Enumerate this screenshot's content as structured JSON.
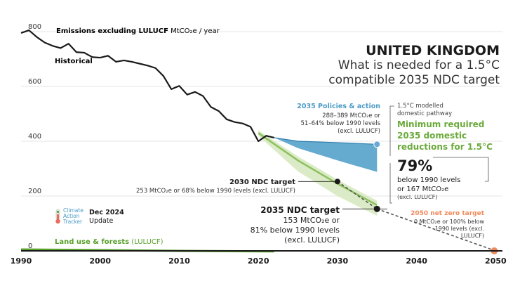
{
  "chart_data": {
    "type": "line",
    "title": "UNITED KINGDOM",
    "subtitle_line1": "What is needed for a 1.5°C",
    "subtitle_line2": "compatible 2035 NDC target",
    "ylabel_bold": "Emissions excluding LULUCF",
    "ylabel_unit": " MtCO₂e / year",
    "xlim": [
      1990,
      2051
    ],
    "ylim": [
      0,
      800
    ],
    "x_ticks": [
      1990,
      2000,
      2010,
      2020,
      2030,
      2040,
      2050
    ],
    "y_ticks": [
      0,
      200,
      400,
      600,
      800
    ],
    "historical": {
      "label": "Historical",
      "x": [
        1990,
        1991,
        1992,
        1993,
        1994,
        1995,
        1996,
        1997,
        1998,
        1999,
        2000,
        2001,
        2002,
        2003,
        2004,
        2005,
        2006,
        2007,
        2008,
        2009,
        2010,
        2011,
        2012,
        2013,
        2014,
        2015,
        2016,
        2017,
        2018,
        2019,
        2020,
        2021,
        2022
      ],
      "y": [
        795,
        805,
        780,
        760,
        748,
        740,
        756,
        725,
        723,
        707,
        705,
        712,
        690,
        695,
        690,
        683,
        676,
        667,
        638,
        590,
        602,
        570,
        580,
        565,
        525,
        510,
        480,
        470,
        465,
        453,
        400,
        420,
        413
      ]
    },
    "policies": {
      "label": "2035 Policies & action",
      "detail": [
        "288–389 MtCO₂e or",
        "51–64% below 1990 levels",
        "(excl. LULUCF)"
      ],
      "x": [
        2022,
        2025,
        2030,
        2035
      ],
      "upper": [
        413,
        400,
        395,
        389
      ],
      "lower": [
        413,
        375,
        330,
        288
      ],
      "color": "#4a9bc7"
    },
    "pathway": {
      "label": "1.5°C modelled domestic pathway",
      "label_line1": "1.5°C modelled",
      "label_line2": "domestic pathway",
      "x": [
        2020,
        2025,
        2030,
        2035
      ],
      "central": [
        430,
        330,
        245,
        167
      ],
      "upper": [
        440,
        345,
        260,
        183
      ],
      "lower": [
        420,
        290,
        200,
        128
      ],
      "color": "#8dc15f"
    },
    "minimum_reduction": {
      "title": [
        "Minimum required",
        "2035 domestic",
        "reductions for 1.5°C"
      ],
      "percent": "79%",
      "detail": [
        "below 1990 levels",
        "or 167 MtCO₂e",
        "(excl. LULUCF)"
      ]
    },
    "ndc_2030": {
      "x": 2030,
      "y": 253,
      "label": "2030 NDC target",
      "detail": "253 MtCO₂e or 68% below 1990 levels (excl. LULUCF)"
    },
    "ndc_2035": {
      "x": 2035,
      "y": 153,
      "label": "2035 NDC target",
      "detail": [
        "153 MtCO₂e or",
        "81% below 1990 levels",
        "(excl. LULUCF)"
      ]
    },
    "net_zero_2050": {
      "x": 2050,
      "y": 0,
      "label": "2050 net zero target",
      "detail": [
        "0 MtCO₂e or 100% below",
        "1990 levels (excl.",
        "LULUCF)"
      ],
      "color": "#f08a5d"
    },
    "lulucf": {
      "label": "Land use & forests",
      "label_suffix": " (LULUCF)",
      "x": [
        1990,
        2000,
        2010,
        2022
      ],
      "y": [
        5,
        3,
        0,
        -2
      ],
      "color": "#5aa02c"
    }
  },
  "brand": {
    "line1": "Climate",
    "line2": "Action",
    "line3": "Tracker",
    "date": "Dec 2024",
    "update": "Update"
  },
  "colors": {
    "line": "#1a1a1a",
    "projection": "#2f5d8a",
    "pathway_text": "#6aaa3a",
    "policies_text": "#4a9bc7"
  }
}
